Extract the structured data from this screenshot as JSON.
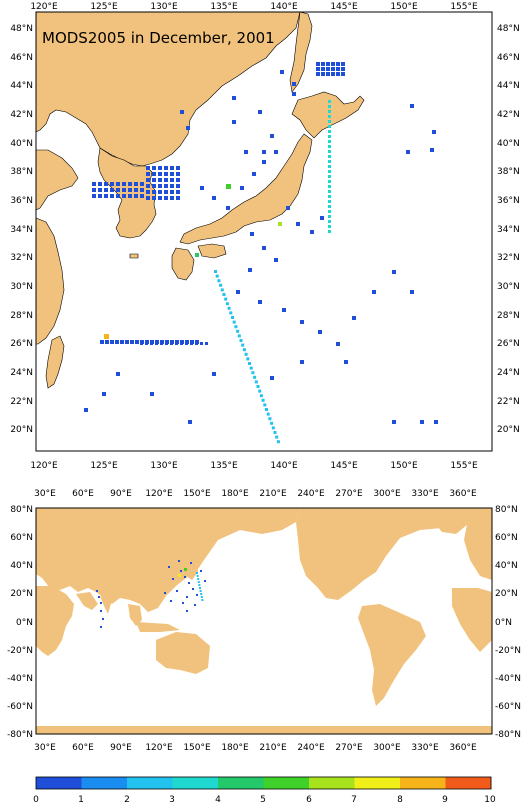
{
  "title": "MODS2005 in December, 2001",
  "colors": {
    "land": "#f1c27d",
    "ocean": "#ffffff",
    "scale": [
      "#1f4fd8",
      "#1a8ef0",
      "#22c2ee",
      "#1fd8d0",
      "#22c86a",
      "#3fd02a",
      "#a8e21c",
      "#f1ef1a",
      "#f7b31a",
      "#f05a1a"
    ]
  },
  "top_map": {
    "lon_ticks": [
      "120°E",
      "125°E",
      "130°E",
      "135°E",
      "140°E",
      "145°E",
      "150°E",
      "155°E"
    ],
    "lat_ticks": [
      "48°N",
      "46°N",
      "44°N",
      "42°N",
      "40°N",
      "38°N",
      "36°N",
      "34°N",
      "32°N",
      "30°N",
      "28°N",
      "26°N",
      "24°N",
      "22°N",
      "20°N"
    ]
  },
  "bottom_map": {
    "lon_ticks": [
      "30°E",
      "60°E",
      "90°E",
      "120°E",
      "150°E",
      "180°E",
      "210°E",
      "240°E",
      "270°E",
      "300°E",
      "330°E",
      "360°E"
    ],
    "lat_ticks": [
      "80°N",
      "60°N",
      "40°N",
      "20°N",
      "0°N",
      "-20°N",
      "-40°N",
      "-60°N",
      "-80°N"
    ]
  },
  "colorbar": {
    "labels": [
      "0",
      "1",
      "2",
      "3",
      "4",
      "5",
      "6",
      "7",
      "8",
      "9",
      "10"
    ]
  }
}
